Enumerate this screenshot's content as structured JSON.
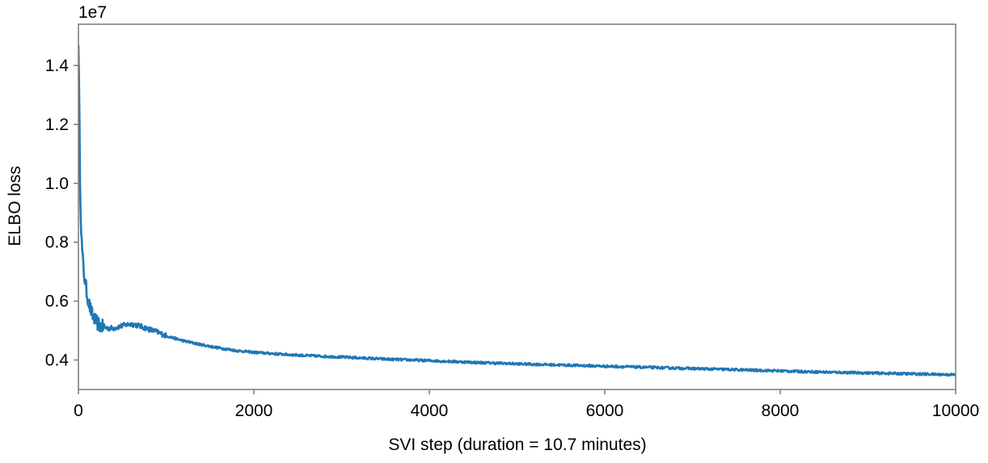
{
  "chart_data": {
    "type": "line",
    "title": "",
    "xlabel": "SVI step (duration = 10.7 minutes)",
    "ylabel": "ELBO loss",
    "y_offset_label": "1e7",
    "xlim": [
      0,
      10000
    ],
    "ylim": [
      0.3,
      1.54
    ],
    "xticks": [
      0,
      2000,
      4000,
      6000,
      8000,
      10000
    ],
    "xtick_labels": [
      "0",
      "2000",
      "4000",
      "6000",
      "8000",
      "10000"
    ],
    "yticks": [
      0.4,
      0.6,
      0.8,
      1.0,
      1.2,
      1.4
    ],
    "ytick_labels": [
      "0.4",
      "0.6",
      "0.8",
      "1.0",
      "1.2",
      "1.4"
    ],
    "grid": false,
    "legend": "none",
    "series": [
      {
        "color": "#1f77b4",
        "x": [
          0,
          10,
          20,
          30,
          40,
          60,
          80,
          100,
          130,
          160,
          200,
          250,
          300,
          350,
          400,
          450,
          500,
          550,
          600,
          650,
          700,
          800,
          900,
          1000,
          1200,
          1400,
          1600,
          1800,
          2000,
          2300,
          2600,
          3000,
          3500,
          4000,
          4500,
          5000,
          5500,
          6000,
          6500,
          7000,
          7500,
          8000,
          8500,
          9000,
          9500,
          10000
        ],
        "y": [
          1.49,
          1.25,
          0.98,
          0.86,
          0.78,
          0.7,
          0.66,
          0.62,
          0.58,
          0.55,
          0.53,
          0.515,
          0.51,
          0.508,
          0.508,
          0.512,
          0.516,
          0.52,
          0.522,
          0.52,
          0.515,
          0.505,
          0.495,
          0.482,
          0.465,
          0.452,
          0.441,
          0.432,
          0.426,
          0.42,
          0.415,
          0.41,
          0.403,
          0.398,
          0.392,
          0.387,
          0.383,
          0.379,
          0.375,
          0.371,
          0.367,
          0.363,
          0.359,
          0.356,
          0.353,
          0.35
        ]
      }
    ]
  }
}
